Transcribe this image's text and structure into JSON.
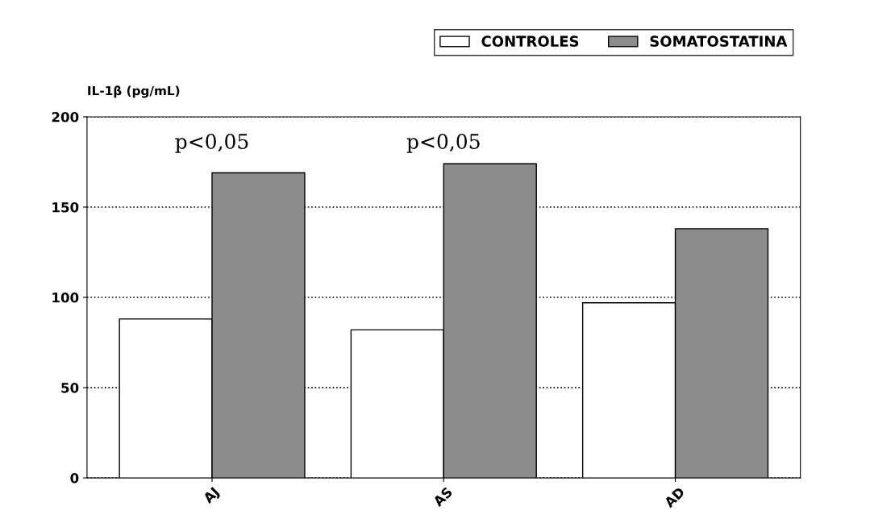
{
  "chart_data": {
    "type": "bar",
    "ylabel": "IL-1β (pg/mL)",
    "categories": [
      "AJ",
      "AS",
      "AD"
    ],
    "series": [
      {
        "name": "CONTROLES",
        "color": "#ffffff",
        "values": [
          88,
          82,
          97
        ]
      },
      {
        "name": "SOMATOSTATINA",
        "color": "#8c8c8c",
        "values": [
          169,
          174,
          138
        ]
      }
    ],
    "ylim": [
      0,
      200
    ],
    "yticks": [
      0,
      50,
      100,
      150,
      200
    ],
    "grid": "y",
    "legend": "top right",
    "annotations": [
      "p<0,05",
      "p<0,05"
    ]
  }
}
